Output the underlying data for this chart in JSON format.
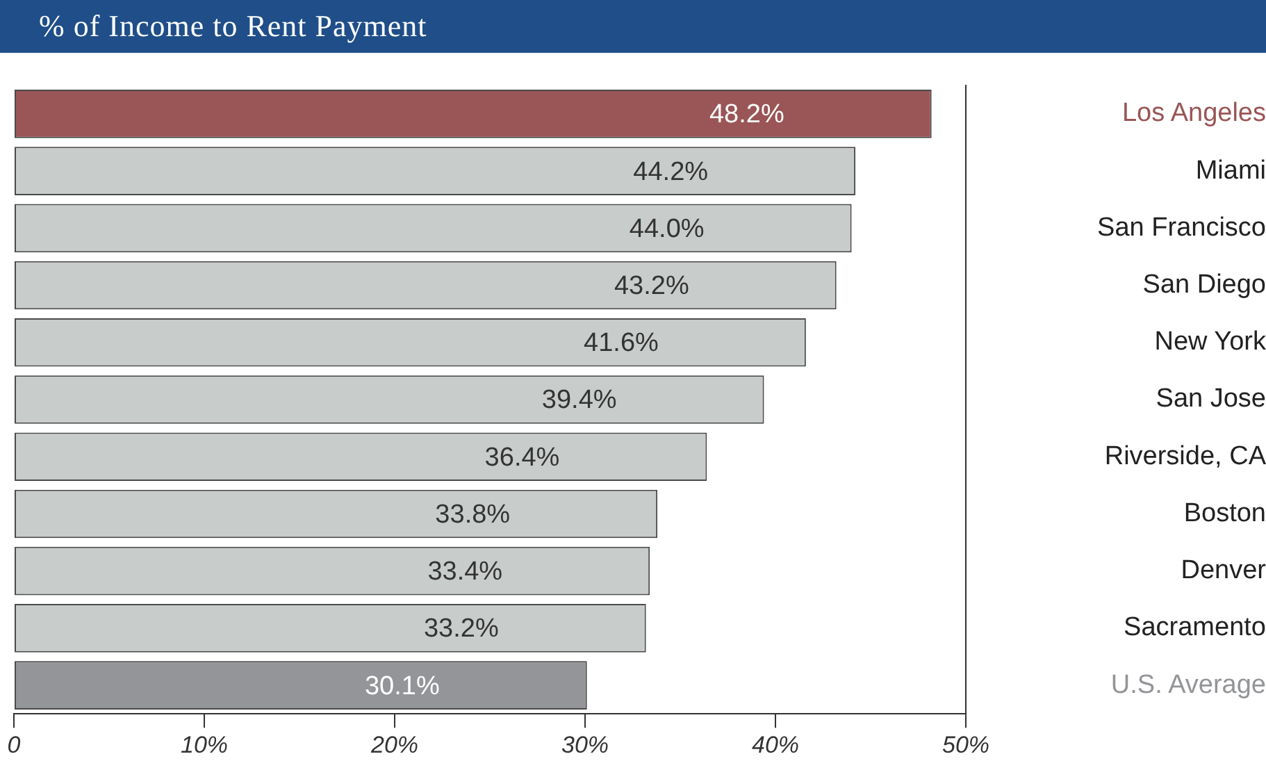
{
  "chart_data": {
    "type": "bar",
    "orientation": "horizontal",
    "title": "% of Income to Rent Payment",
    "categories": [
      "Los Angeles",
      "Miami",
      "San Francisco",
      "San Diego",
      "New York",
      "San Jose",
      "Riverside, CA",
      "Boston",
      "Denver",
      "Sacramento",
      "U.S. Average"
    ],
    "values": [
      48.2,
      44.2,
      44.0,
      43.2,
      41.6,
      39.4,
      36.4,
      33.8,
      33.4,
      33.2,
      30.1
    ],
    "value_labels": [
      "48.2%",
      "44.2%",
      "44.0%",
      "43.2%",
      "41.6%",
      "39.4%",
      "36.4%",
      "33.8%",
      "33.4%",
      "33.2%",
      "30.1%"
    ],
    "colors": [
      "#9a5556",
      "#c8cccb",
      "#c8cccb",
      "#c8cccb",
      "#c8cccb",
      "#c8cccb",
      "#c8cccb",
      "#c8cccb",
      "#c8cccb",
      "#c8cccb",
      "#939598"
    ],
    "xlim": [
      0,
      50
    ],
    "xticks": [
      {
        "value": 0,
        "label": "0"
      },
      {
        "value": 10,
        "label": "10%"
      },
      {
        "value": 20,
        "label": "20%"
      },
      {
        "value": 30,
        "label": "30%"
      },
      {
        "value": 40,
        "label": "40%"
      },
      {
        "value": 50,
        "label": "50%"
      }
    ],
    "grid": false,
    "legend": false
  }
}
